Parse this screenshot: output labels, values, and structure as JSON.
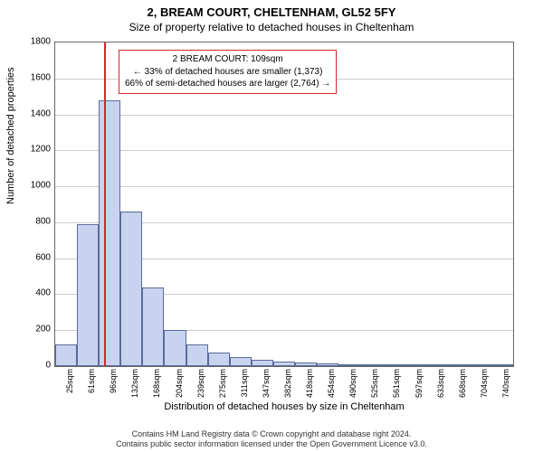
{
  "header": {
    "address": "2, BREAM COURT, CHELTENHAM, GL52 5FY",
    "subtitle": "Size of property relative to detached houses in Cheltenham"
  },
  "chart": {
    "type": "histogram",
    "ylabel": "Number of detached properties",
    "xlabel": "Distribution of detached houses by size in Cheltenham",
    "ylim": [
      0,
      1800
    ],
    "ytick_step": 200,
    "yticks": [
      0,
      200,
      400,
      600,
      800,
      1000,
      1200,
      1400,
      1600,
      1800
    ],
    "xticklabels": [
      "25sqm",
      "61sqm",
      "96sqm",
      "132sqm",
      "168sqm",
      "204sqm",
      "239sqm",
      "275sqm",
      "311sqm",
      "347sqm",
      "382sqm",
      "418sqm",
      "454sqm",
      "490sqm",
      "525sqm",
      "561sqm",
      "597sqm",
      "633sqm",
      "668sqm",
      "704sqm",
      "740sqm"
    ],
    "bar_values": [
      120,
      790,
      1480,
      860,
      440,
      200,
      120,
      75,
      50,
      35,
      25,
      20,
      15,
      12,
      10,
      8,
      7,
      6,
      5,
      4,
      3
    ],
    "bar_color": "#c8d4ef",
    "bar_border_color": "#5a6b9a",
    "grid_color": "#cccccc",
    "background_color": "#ffffff",
    "refline_index": 2.25,
    "refline_color": "#d62728",
    "annotation": {
      "line1": "2 BREAM COURT: 109sqm",
      "line2": "← 33% of detached houses are smaller (1,373)",
      "line3": "66% of semi-detached houses are larger (2,764) →"
    }
  },
  "footer": {
    "line1": "Contains HM Land Registry data © Crown copyright and database right 2024.",
    "line2": "Contains public sector information licensed under the Open Government Licence v3.0."
  }
}
